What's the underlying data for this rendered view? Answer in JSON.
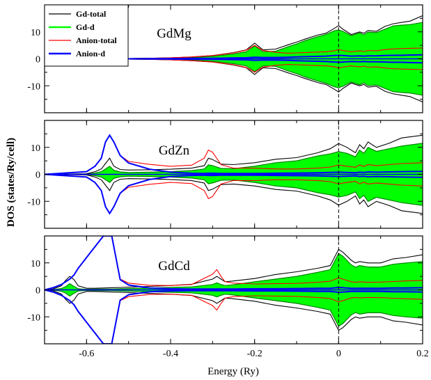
{
  "chart_data": {
    "type": "line",
    "ylabel": "DOS (states/Ry/cell)",
    "xlabel": "Energy (Ry)",
    "xlim": [
      -0.7,
      0.2
    ],
    "ylim": [
      -20,
      20
    ],
    "x_ticks": [
      "-0.6",
      "-0.4",
      "-0.2",
      "0",
      "0.2"
    ],
    "y_ticks": [
      "10",
      "0",
      "-10"
    ],
    "reference_line_x": 0,
    "colors": {
      "Gd-total": "#000000",
      "Gd-d": "#00ff00",
      "Anion-total": "#ff0000",
      "Anion-d": "#0000ff",
      "Gd-d-edge": "#008000"
    },
    "legend": {
      "placement": "top-left",
      "entries": [
        "Gd-total",
        "Gd-d",
        "Anion-total",
        "Anion-d"
      ]
    },
    "panels": [
      {
        "title": "GdMg",
        "x": [
          -0.7,
          -0.6,
          -0.5,
          -0.45,
          -0.4,
          -0.35,
          -0.3,
          -0.25,
          -0.22,
          -0.2,
          -0.18,
          -0.15,
          -0.12,
          -0.1,
          -0.08,
          -0.05,
          -0.03,
          -0.01,
          0,
          0.01,
          0.03,
          0.05,
          0.06,
          0.07,
          0.09,
          0.11,
          0.13,
          0.15,
          0.17,
          0.2
        ],
        "series": [
          {
            "name": "Gd-total",
            "values": [
              0,
              0,
              0.1,
              0.2,
              0.4,
              0.7,
              1.2,
              2.3,
              3.3,
              5.8,
              3.3,
              3.6,
              5.2,
              6.2,
              7.3,
              8.8,
              9.5,
              11.3,
              12.3,
              11.0,
              9.0,
              10.0,
              9.5,
              10.5,
              10.2,
              12.0,
              13.0,
              13.5,
              14.0,
              16.0
            ]
          },
          {
            "name": "Gd-d",
            "values": [
              0,
              0,
              0.1,
              0.2,
              0.3,
              0.5,
              0.9,
              1.8,
              2.6,
              4.7,
              2.6,
              2.8,
              4.5,
              5.5,
              6.7,
              8.2,
              9.0,
              10.4,
              10.7,
              10.2,
              8.6,
              9.6,
              8.9,
              9.9,
              9.7,
              11.0,
              12.2,
              12.5,
              12.7,
              13.5
            ]
          },
          {
            "name": "Anion-total",
            "values": [
              0,
              0,
              0.1,
              0.2,
              0.4,
              0.7,
              1.2,
              2.2,
              3.2,
              5.0,
              3.1,
              2.4,
              2.1,
              2.2,
              2.3,
              2.5,
              2.6,
              3.0,
              3.4,
              3.1,
              2.6,
              3.0,
              2.7,
              3.1,
              3.0,
              3.4,
              3.7,
              3.8,
              3.9,
              4.0
            ]
          },
          {
            "name": "Anion-d",
            "values": [
              0,
              0,
              0,
              0.05,
              0.1,
              0.15,
              0.2,
              0.3,
              0.4,
              0.6,
              0.5,
              0.5,
              0.6,
              0.7,
              0.8,
              0.9,
              1.0,
              1.2,
              1.3,
              1.2,
              1.0,
              1.1,
              1.0,
              1.1,
              1.1,
              1.2,
              1.3,
              1.3,
              1.4,
              1.5
            ]
          }
        ]
      },
      {
        "title": "GdZn",
        "x": [
          -0.7,
          -0.6,
          -0.58,
          -0.565,
          -0.555,
          -0.545,
          -0.535,
          -0.52,
          -0.5,
          -0.45,
          -0.4,
          -0.35,
          -0.32,
          -0.31,
          -0.3,
          -0.28,
          -0.25,
          -0.2,
          -0.15,
          -0.1,
          -0.05,
          -0.02,
          0,
          0.02,
          0.04,
          0.05,
          0.06,
          0.07,
          0.09,
          0.12,
          0.15,
          0.2
        ],
        "series": [
          {
            "name": "Gd-total",
            "values": [
              0,
              0.2,
              1.0,
              2.0,
              4.0,
              6.0,
              3.0,
              1.8,
              1.6,
              1.7,
              1.9,
              2.3,
              3.2,
              6.0,
              5.5,
              3.8,
              3.6,
              4.3,
              5.6,
              6.2,
              8.0,
              9.5,
              11.4,
              10.0,
              8.0,
              11.0,
              9.5,
              12.0,
              10.0,
              11.5,
              13.5,
              14.5
            ]
          },
          {
            "name": "Gd-d",
            "values": [
              0,
              0.1,
              0.5,
              1.0,
              2.0,
              3.0,
              1.5,
              0.9,
              0.7,
              0.8,
              1.0,
              1.4,
              2.0,
              3.5,
              3.2,
              2.2,
              2.1,
              3.0,
              4.3,
              5.0,
              6.8,
              7.6,
              8.4,
              7.8,
              6.5,
              9.0,
              7.8,
              10.0,
              8.5,
              9.5,
              10.5,
              11.5
            ]
          },
          {
            "name": "Anion-total",
            "values": [
              0,
              1.0,
              3.0,
              6.0,
              12.0,
              14.5,
              12.0,
              7.0,
              4.8,
              3.7,
              3.0,
              3.4,
              6.0,
              9.0,
              8.2,
              3.6,
              2.3,
              2.3,
              2.0,
              2.0,
              2.3,
              2.7,
              3.5,
              3.0,
              2.6,
              3.5,
              2.9,
              3.6,
              3.2,
              3.6,
              4.0,
              4.3
            ]
          },
          {
            "name": "Anion-d",
            "values": [
              0,
              1.0,
              3.0,
              6.0,
              12.0,
              14.5,
              12.0,
              7.0,
              4.2,
              1.9,
              0.8,
              0.4,
              0.3,
              0.4,
              0.4,
              0.3,
              0.3,
              0.3,
              0.4,
              0.5,
              0.6,
              0.7,
              0.8,
              0.7,
              0.6,
              0.8,
              0.7,
              0.9,
              0.8,
              0.9,
              1.0,
              1.1
            ]
          }
        ]
      },
      {
        "title": "GdCd",
        "x": [
          -0.7,
          -0.68,
          -0.66,
          -0.65,
          -0.64,
          -0.63,
          -0.62,
          -0.6,
          -0.58,
          -0.56,
          -0.54,
          -0.52,
          -0.5,
          -0.45,
          -0.4,
          -0.35,
          -0.3,
          -0.29,
          -0.28,
          -0.27,
          -0.25,
          -0.2,
          -0.15,
          -0.1,
          -0.05,
          -0.02,
          0,
          0.01,
          0.03,
          0.04,
          0.05,
          0.07,
          0.1,
          0.13,
          0.16,
          0.2
        ],
        "series": [
          {
            "name": "Gd-total",
            "values": [
              0,
              0.3,
              1.5,
              3.5,
              5.0,
              3.8,
              1.5,
              0.6,
              0.6,
              0.7,
              0.8,
              0.9,
              1.0,
              1.3,
              1.6,
              2.1,
              4.0,
              5.0,
              4.0,
              3.0,
              3.3,
              4.2,
              5.7,
              6.7,
              8.0,
              9.0,
              15.0,
              14.0,
              11.0,
              10.0,
              10.5,
              10.0,
              10.0,
              11.5,
              12.0,
              13.0
            ]
          },
          {
            "name": "Gd-d",
            "values": [
              0,
              0.1,
              0.5,
              1.2,
              2.3,
              1.3,
              0.4,
              0.2,
              0.3,
              0.3,
              0.3,
              0.4,
              0.5,
              0.7,
              0.9,
              1.1,
              2.0,
              2.6,
              2.0,
              1.6,
              1.9,
              3.0,
              4.0,
              5.0,
              6.5,
              7.5,
              13.5,
              12.5,
              9.3,
              8.4,
              9.0,
              8.5,
              8.5,
              9.5,
              10.0,
              10.5
            ]
          },
          {
            "name": "Anion-total",
            "values": [
              0,
              0.8,
              2.0,
              3.0,
              4.0,
              5.5,
              8.0,
              12.0,
              16.0,
              20.0,
              20.0,
              4.0,
              2.5,
              1.7,
              1.6,
              2.0,
              5.8,
              7.5,
              5.0,
              3.0,
              2.5,
              2.2,
              2.3,
              2.4,
              2.8,
              3.2,
              4.5,
              4.0,
              3.0,
              2.8,
              3.0,
              2.8,
              2.9,
              3.1,
              3.3,
              3.5
            ]
          },
          {
            "name": "Anion-d",
            "values": [
              0,
              0.8,
              2.0,
              3.0,
              4.0,
              5.5,
              8.0,
              12.0,
              16.0,
              20.0,
              20.0,
              3.8,
              1.8,
              0.7,
              0.4,
              0.3,
              0.3,
              0.3,
              0.3,
              0.3,
              0.3,
              0.4,
              0.4,
              0.5,
              0.6,
              0.6,
              0.9,
              0.8,
              0.6,
              0.6,
              0.6,
              0.6,
              0.6,
              0.7,
              0.7,
              0.8
            ]
          }
        ]
      }
    ]
  }
}
